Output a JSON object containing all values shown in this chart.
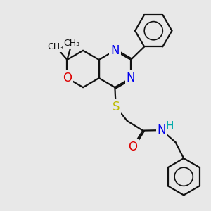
{
  "background_color": "#e8e8e8",
  "atom_colors": {
    "N": "#0000ee",
    "O": "#dd0000",
    "S": "#bbbb00",
    "C": "#111111",
    "H": "#00aaaa"
  },
  "line_color": "#111111",
  "line_width": 1.6,
  "font_size_atom": 12,
  "font_size_small": 9
}
